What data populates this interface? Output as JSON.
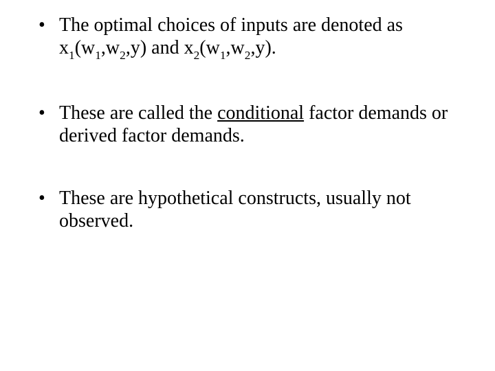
{
  "text_color": "#000000",
  "background_color": "#ffffff",
  "font_family": "Times New Roman",
  "base_font_size_pt": 28,
  "bullets": [
    {
      "pre": "The optimal choices of inputs are denoted as x",
      "s1": "1",
      "mid1": "(w",
      "s2": "1",
      "mid2": ",w",
      "s3": "2",
      "mid3": ",y) and x",
      "s4": "2",
      "mid4": "(w",
      "s5": "1",
      "mid5": ",w",
      "s6": "2",
      "tail": ",y)."
    },
    {
      "pre": "These are called the ",
      "underline": "conditional",
      "post": " factor demands or derived factor demands."
    },
    {
      "text": "These are hypothetical constructs, usually not observed."
    }
  ]
}
